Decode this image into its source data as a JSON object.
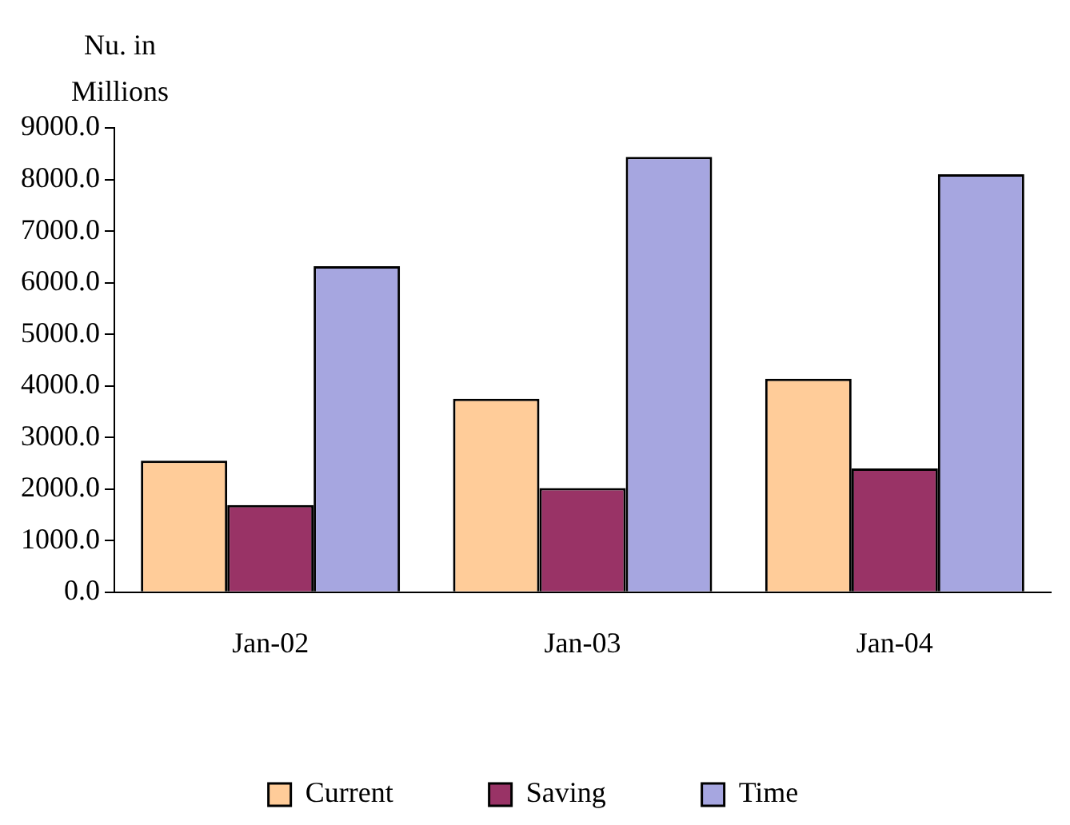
{
  "chart_data": {
    "type": "bar",
    "ylabel": "Nu. in Millions",
    "categories": [
      "Jan-02",
      "Jan-03",
      "Jan-04"
    ],
    "series": [
      {
        "name": "Current",
        "color": "#ffcc99",
        "values": [
          2550,
          3750,
          4140
        ]
      },
      {
        "name": "Saving",
        "color": "#993366",
        "values": [
          1690,
          2020,
          2400
        ]
      },
      {
        "name": "Time",
        "color": "#a6a6e0",
        "values": [
          6320,
          8440,
          8100
        ]
      }
    ],
    "ylim": [
      0,
      9000
    ],
    "yticks": [
      {
        "value": 0,
        "label": "0.0"
      },
      {
        "value": 1000,
        "label": "1000.0"
      },
      {
        "value": 2000,
        "label": "2000.0"
      },
      {
        "value": 3000,
        "label": "3000.0"
      },
      {
        "value": 4000,
        "label": "4000.0"
      },
      {
        "value": 5000,
        "label": "5000.0"
      },
      {
        "value": 6000,
        "label": "6000.0"
      },
      {
        "value": 7000,
        "label": "7000.0"
      },
      {
        "value": 8000,
        "label": "8000.0"
      },
      {
        "value": 9000,
        "label": "9000.0"
      }
    ],
    "grid": false,
    "legend": "bottom"
  }
}
